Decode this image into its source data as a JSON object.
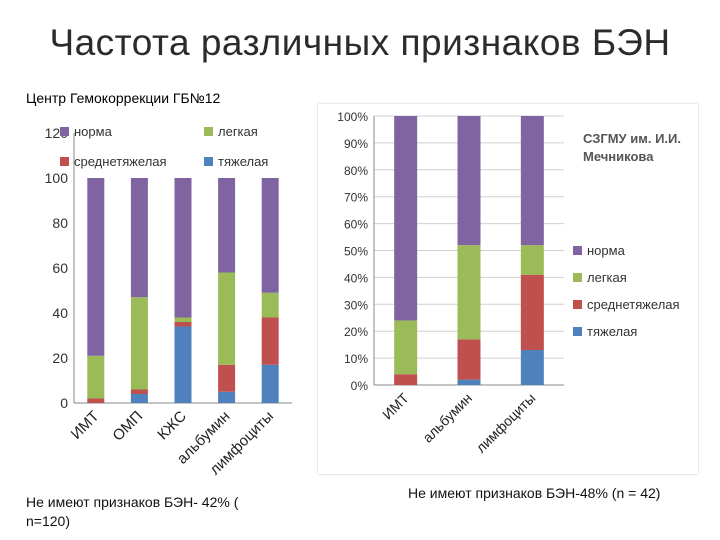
{
  "slide": {
    "title": "Частота различных признаков БЭН",
    "subtitle": "Центр Гемокоррекции ГБ№12",
    "note_left": "Не имеют признаков БЭН- 42% ( n=120)",
    "note_right": "Не имеют признаков БЭН-48% (n = 42)",
    "right_chart_label": "СЗГМУ им. И.И. Мечникова"
  },
  "colors": {
    "норма": "#8064A2",
    "легкая": "#9BBB59",
    "среднетяжелая": "#C0504D",
    "тяжелая": "#4F81BD"
  },
  "chart_data": [
    {
      "type": "bar",
      "stacked": true,
      "title": "",
      "categories": [
        "ИМТ",
        "ОМП",
        "КЖС",
        "альбумин",
        "лимфоциты"
      ],
      "series": [
        {
          "name": "тяжелая",
          "values": [
            0,
            4,
            34,
            5,
            17
          ]
        },
        {
          "name": "среднетяжелая",
          "values": [
            2,
            2,
            2,
            12,
            21
          ]
        },
        {
          "name": "легкая",
          "values": [
            19,
            41,
            2,
            41,
            11
          ]
        },
        {
          "name": "норма",
          "values": [
            79,
            53,
            62,
            42,
            51
          ]
        }
      ],
      "ylim": [
        0,
        120
      ],
      "yticks": [
        "0",
        "20",
        "40",
        "60",
        "80",
        "100",
        "120"
      ],
      "legend": [
        "норма",
        "легкая",
        "среднетяжелая",
        "тяжелая"
      ],
      "legend_position": "top"
    },
    {
      "type": "bar",
      "stacked": true,
      "title": "",
      "categories": [
        "ИМТ",
        "альбумин",
        "лимфоциты"
      ],
      "series": [
        {
          "name": "тяжелая",
          "values": [
            0,
            2,
            13
          ]
        },
        {
          "name": "среднетяжелая",
          "values": [
            4,
            15,
            28
          ]
        },
        {
          "name": "легкая",
          "values": [
            20,
            35,
            11
          ]
        },
        {
          "name": "норма",
          "values": [
            76,
            48,
            48
          ]
        }
      ],
      "ylim": [
        0,
        100
      ],
      "yticks": [
        "0%",
        "10%",
        "20%",
        "30%",
        "40%",
        "50%",
        "60%",
        "70%",
        "80%",
        "90%",
        "100%"
      ],
      "legend": [
        "норма",
        "легкая",
        "среднетяжелая",
        "тяжелая"
      ],
      "legend_position": "right"
    }
  ]
}
